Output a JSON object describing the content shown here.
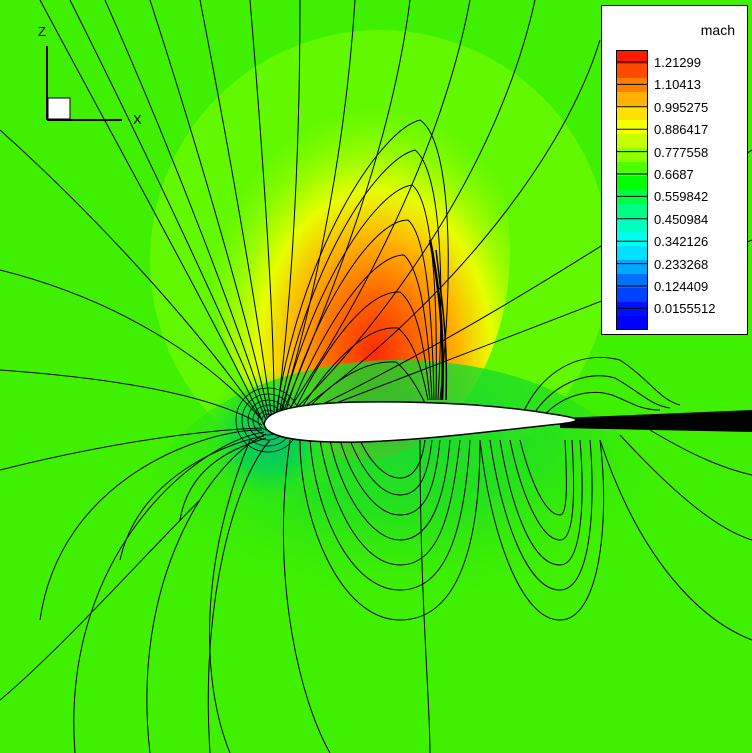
{
  "legend": {
    "title": "mach",
    "labels": [
      "1.21299",
      "1.10413",
      "0.995275",
      "0.886417",
      "0.777558",
      "0.6687",
      "0.559842",
      "0.450984",
      "0.342126",
      "0.233268",
      "0.124409",
      "0.0155512"
    ],
    "band_colors_top_to_bottom": [
      "#ff1a00",
      "#ff4a00",
      "#ff8000",
      "#ffb000",
      "#ffe000",
      "#f5ff00",
      "#c8ff00",
      "#90ff00",
      "#4dff00",
      "#00ff00",
      "#00ff40",
      "#00ff80",
      "#00ffbf",
      "#00ffee",
      "#00e0ff",
      "#00a8ff",
      "#0070ff",
      "#0040ff",
      "#0010ff",
      "#0000ff"
    ]
  },
  "axes": {
    "vertical": "Z",
    "horizontal": "X"
  },
  "colors": {
    "freestream": "#3ff000",
    "airfoil": "#ffffff",
    "contour_line": "#000000"
  }
}
